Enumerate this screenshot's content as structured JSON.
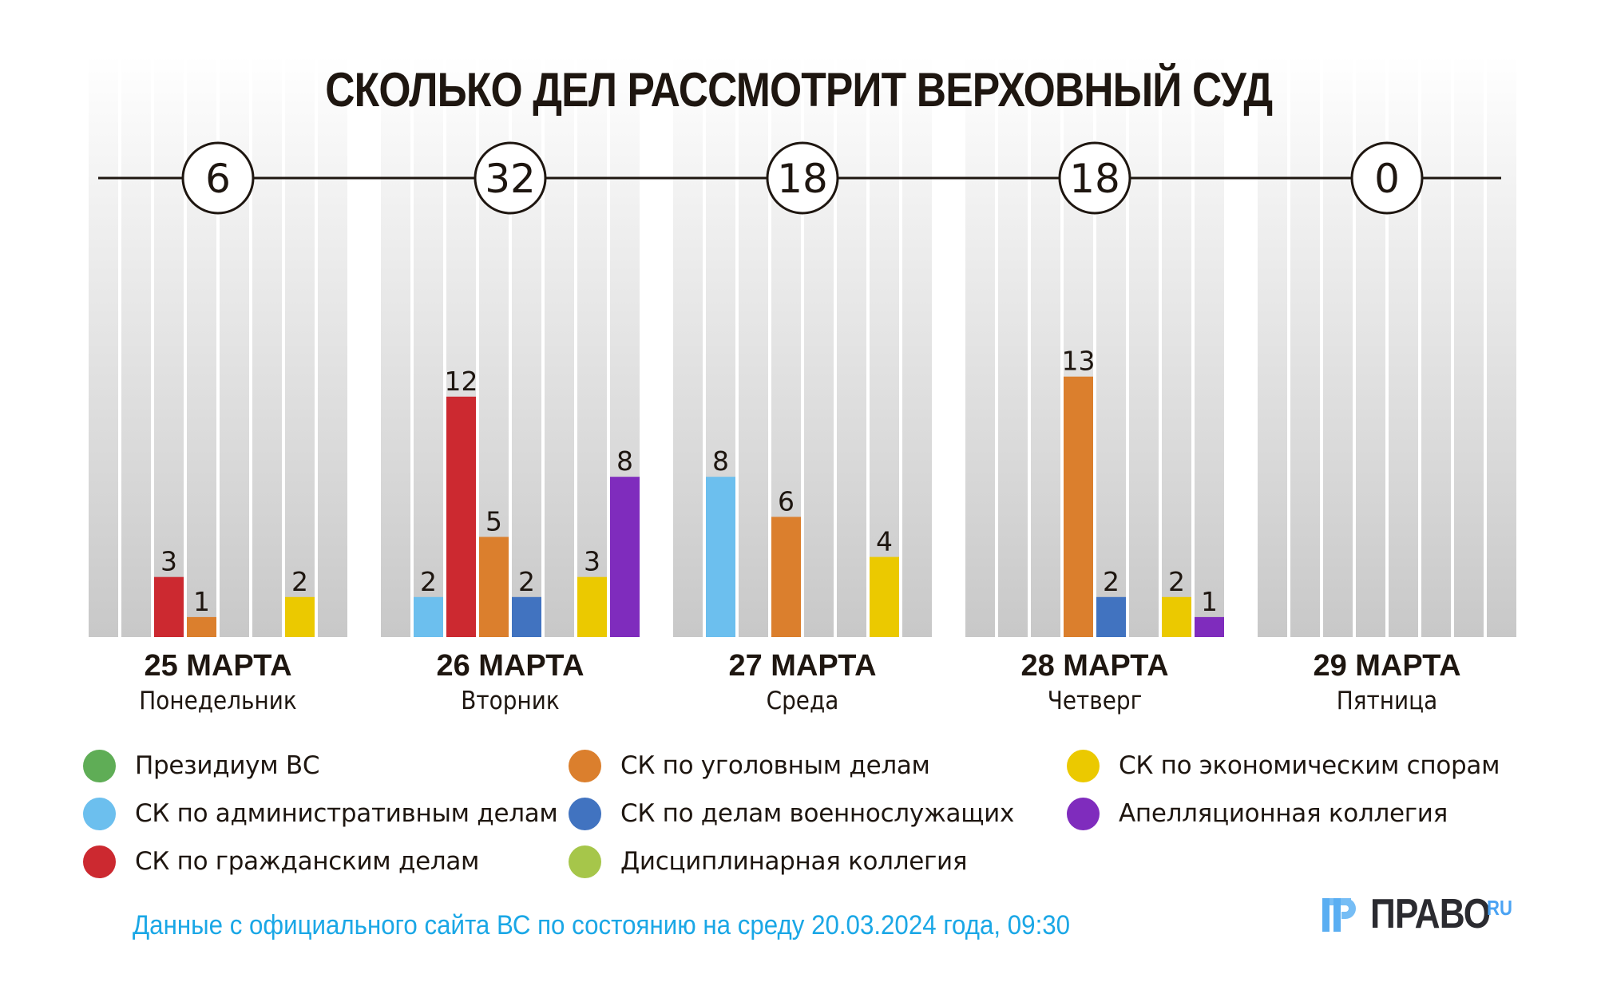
{
  "title": "СКОЛЬКО ДЕЛ РАССМОТРИТ ВЕРХОВНЫЙ СУД",
  "days": [
    {
      "date": "25 МАРТА",
      "weekday": "Понедельник",
      "total": "6"
    },
    {
      "date": "26 МАРТА",
      "weekday": "Вторник",
      "total": "32"
    },
    {
      "date": "27 МАРТА",
      "weekday": "Среда",
      "total": "18"
    },
    {
      "date": "28 МАРТА",
      "weekday": "Четверг",
      "total": "18"
    },
    {
      "date": "29 МАРТА",
      "weekday": "Пятница",
      "total": "0"
    }
  ],
  "legend": [
    {
      "label": "Президиум ВС",
      "color": "#5fad56"
    },
    {
      "label": "СК по административным делам",
      "color": "#6cbfee"
    },
    {
      "label": "СК по гражданским делам",
      "color": "#cc2930"
    },
    {
      "label": "СК по уголовным делам",
      "color": "#db7f2d"
    },
    {
      "label": "СК по делам военнослужащих",
      "color": "#4173c0"
    },
    {
      "label": "Дисциплинарная коллегия",
      "color": "#a6c64a"
    },
    {
      "label": "СК по экономическим спорам",
      "color": "#ebc900"
    },
    {
      "label": "Апелляционная коллегия",
      "color": "#7f2cbd"
    }
  ],
  "footer": "Данные с официального сайта ВС по состоянию на среду 20.03.2024 года, 09:30",
  "logo": {
    "word": "ПРАВО",
    "suffix": "RU"
  },
  "chart_data": {
    "type": "bar",
    "title": "СКОЛЬКО ДЕЛ РАССМОТРИТ ВЕРХОВНЫЙ СУД",
    "categories": [
      "25 МАРТА",
      "26 МАРТА",
      "27 МАРТА",
      "28 МАРТА",
      "29 МАРТА"
    ],
    "totals": [
      6,
      32,
      18,
      18,
      0
    ],
    "series": [
      {
        "name": "Президиум ВС",
        "color": "#5fad56",
        "values": [
          0,
          0,
          0,
          0,
          0
        ]
      },
      {
        "name": "СК по административным делам",
        "color": "#6cbfee",
        "values": [
          0,
          2,
          8,
          0,
          0
        ]
      },
      {
        "name": "СК по гражданским делам",
        "color": "#cc2930",
        "values": [
          3,
          12,
          0,
          0,
          0
        ]
      },
      {
        "name": "СК по уголовным делам",
        "color": "#db7f2d",
        "values": [
          1,
          5,
          6,
          13,
          0
        ]
      },
      {
        "name": "СК по делам военнослужащих",
        "color": "#4173c0",
        "values": [
          0,
          2,
          0,
          2,
          0
        ]
      },
      {
        "name": "Дисциплинарная коллегия",
        "color": "#a6c64a",
        "values": [
          0,
          0,
          0,
          0,
          0
        ]
      },
      {
        "name": "СК по экономическим спорам",
        "color": "#ebc900",
        "values": [
          2,
          3,
          4,
          2,
          0
        ]
      },
      {
        "name": "Апелляционная коллегия",
        "color": "#7f2cbd",
        "values": [
          0,
          8,
          0,
          1,
          0
        ]
      }
    ],
    "xlabel": "",
    "ylabel": "",
    "ylim": [
      0,
      29
    ],
    "grid": false,
    "legend": "bottom",
    "show_zero_labels": false
  }
}
